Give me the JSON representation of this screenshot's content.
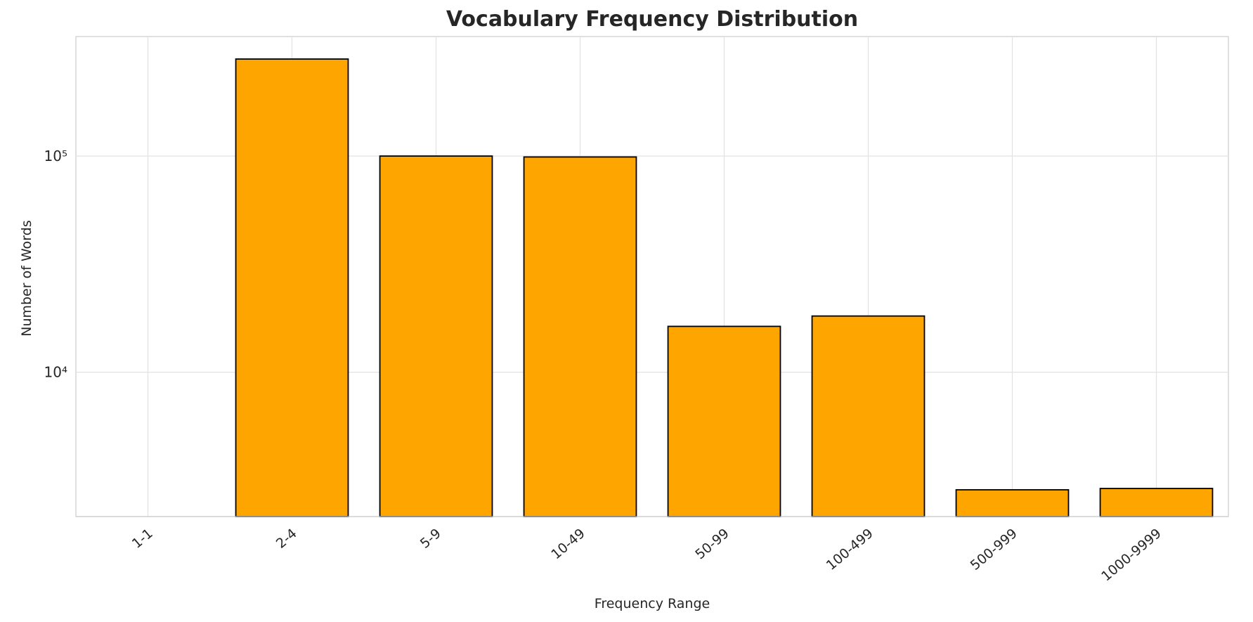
{
  "chart_data": {
    "type": "bar",
    "title": "Vocabulary Frequency Distribution",
    "xlabel": "Frequency Range",
    "ylabel": "Number of Words",
    "categories": [
      "1-1",
      "2-4",
      "5-9",
      "10-49",
      "50-99",
      "100-499",
      "500-999",
      "1000-9999"
    ],
    "values": [
      0,
      281000,
      100000,
      99000,
      16300,
      18200,
      2860,
      2900
    ],
    "yscale": "log",
    "ylim": [
      2150,
      357000
    ],
    "yticks": [
      {
        "value": 10000,
        "label": "10⁴"
      },
      {
        "value": 100000,
        "label": "10⁵"
      }
    ],
    "bar_color": "#FFA500",
    "bar_edge_color": "#000000",
    "grid": true,
    "grid_color": "#e2e2e2",
    "plot_border_color": "#cccccc",
    "tick_label_color": "#262626",
    "legend": "none"
  }
}
